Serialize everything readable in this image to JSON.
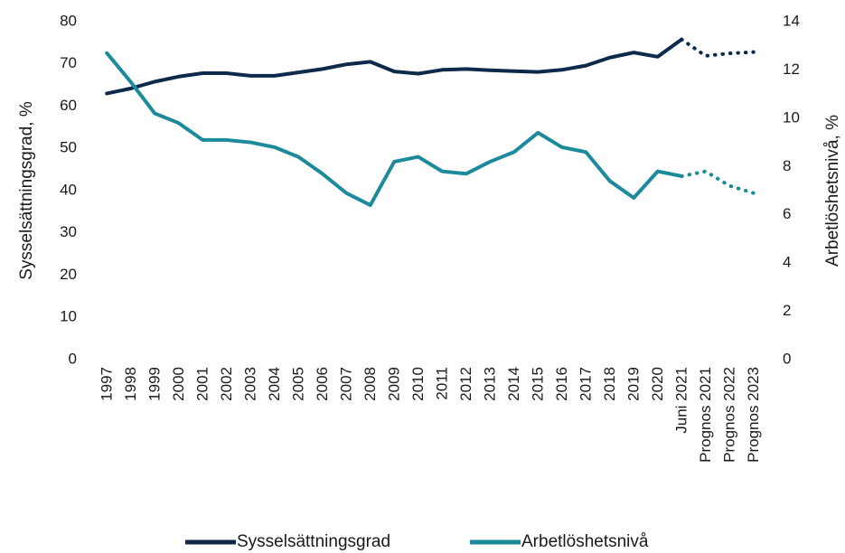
{
  "chart_data": {
    "type": "line",
    "categories": [
      "1997",
      "1998",
      "1999",
      "2000",
      "2001",
      "2002",
      "2003",
      "2004",
      "2005",
      "2006",
      "2007",
      "2008",
      "2009",
      "2010",
      "2011",
      "2012",
      "2013",
      "2014",
      "2015",
      "2016",
      "2017",
      "2018",
      "2019",
      "2020",
      "Juni 2021",
      "Prognos 2021",
      "Prognos 2022",
      "Prognos 2023"
    ],
    "ylabel": "Sysselsättningsgrad, %",
    "y2label": "Arbetlöshetsnivå, %",
    "ylim": [
      0,
      80
    ],
    "yticks": [
      0,
      10,
      20,
      30,
      40,
      50,
      60,
      70,
      80
    ],
    "y2lim": [
      0,
      14
    ],
    "y2ticks": [
      0,
      2,
      4,
      6,
      8,
      10,
      12,
      14
    ],
    "dotted_from": 24,
    "legend": "bottom",
    "grid": false,
    "series": [
      {
        "name": "Sysselsättningsgrad",
        "color": "#0d2a4a",
        "axis": "y",
        "values": [
          63,
          64.2,
          65.8,
          67,
          67.8,
          67.8,
          67.2,
          67.2,
          68,
          68.8,
          69.9,
          70.5,
          68.2,
          67.7,
          68.6,
          68.8,
          68.5,
          68.3,
          68.1,
          68.6,
          69.6,
          71.5,
          72.7,
          71.7,
          75.8,
          71.9,
          72.5,
          72.8
        ]
      },
      {
        "name": "Arbetlöshetsnivå",
        "color": "#1b8a9b",
        "axis": "y2",
        "values": [
          12.7,
          11.5,
          10.2,
          9.8,
          9.1,
          9.1,
          9.0,
          8.8,
          8.4,
          7.7,
          6.9,
          6.4,
          8.2,
          8.4,
          7.8,
          7.7,
          8.2,
          8.6,
          9.4,
          8.8,
          8.6,
          7.4,
          6.7,
          7.8,
          7.6,
          7.8,
          7.2,
          6.9
        ]
      }
    ]
  }
}
